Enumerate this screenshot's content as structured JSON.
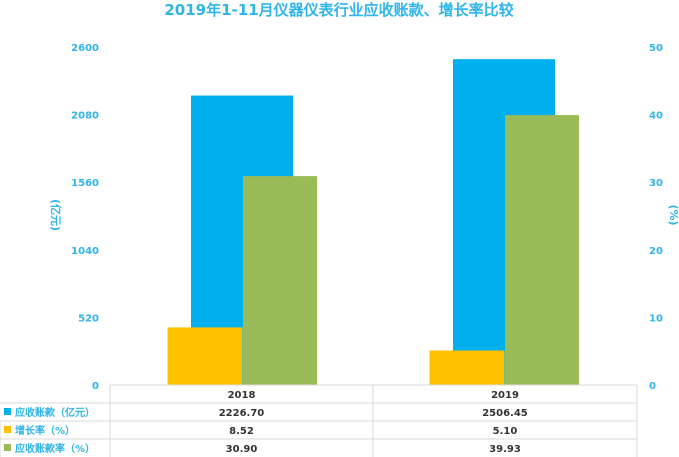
{
  "chart_data": {
    "type": "bar",
    "title": "2019年1-11月仪器仪表行业应收账款、增长率比较",
    "categories": [
      "2018",
      "2019"
    ],
    "y_left": {
      "label": "(亿元)",
      "ticks": [
        "0",
        "520",
        "1040",
        "1560",
        "2080",
        "2600"
      ],
      "ylim": [
        0,
        2600
      ]
    },
    "y_right": {
      "label": "(%)",
      "ticks": [
        "0",
        "10",
        "20",
        "30",
        "40",
        "50"
      ],
      "ylim": [
        0,
        50
      ]
    },
    "series": [
      {
        "name": "应收账款（亿元）",
        "axis": "left",
        "values": [
          2226.7,
          2506.45
        ],
        "labels": [
          "2226.70",
          "2506.45"
        ],
        "color": "#00b0ee"
      },
      {
        "name": "增长率（%）",
        "axis": "right",
        "values": [
          8.52,
          5.1
        ],
        "labels": [
          "8.52",
          "5.10"
        ],
        "color": "#ffc000"
      },
      {
        "name": "应收账款率（%）",
        "axis": "right",
        "values": [
          30.9,
          39.93
        ],
        "labels": [
          "30.90",
          "39.93"
        ],
        "color": "#9bbb59"
      }
    ],
    "grid": false,
    "legend": "table-below"
  }
}
